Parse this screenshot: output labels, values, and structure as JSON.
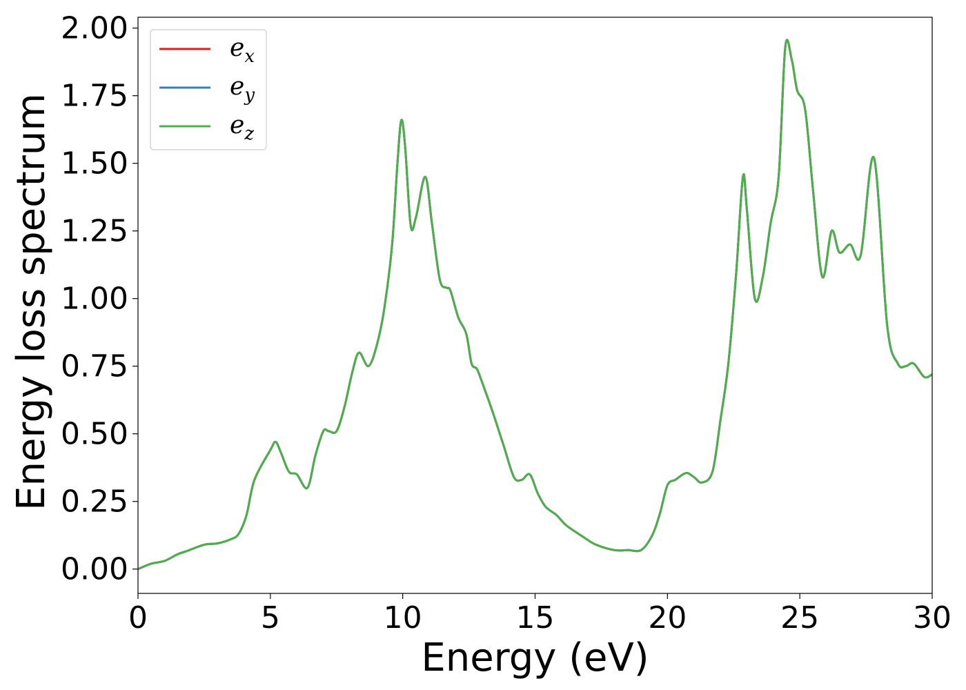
{
  "chart_data": {
    "type": "line",
    "title": "",
    "xlabel": "Energy (eV)",
    "ylabel": "Energy loss spectrum",
    "xlim": [
      0,
      30
    ],
    "ylim": [
      -0.09,
      2.04
    ],
    "xticks": [
      0,
      5,
      10,
      15,
      20,
      25,
      30
    ],
    "xtick_labels": [
      "0",
      "5",
      "10",
      "15",
      "20",
      "25",
      "30"
    ],
    "yticks": [
      0.0,
      0.25,
      0.5,
      0.75,
      1.0,
      1.25,
      1.5,
      1.75,
      2.0
    ],
    "ytick_labels": [
      "0.00",
      "0.25",
      "0.50",
      "0.75",
      "1.00",
      "1.25",
      "1.50",
      "1.75",
      "2.00"
    ],
    "grid": false,
    "legend_position": "top-left",
    "series": [
      {
        "name": "e",
        "subscript": "x",
        "color": "#e41a1c",
        "points": "shared"
      },
      {
        "name": "e",
        "subscript": "y",
        "color": "#377eb8",
        "points": "shared"
      },
      {
        "name": "e",
        "subscript": "z",
        "color": "#4daf4a",
        "points": "shared"
      }
    ],
    "x": [
      0,
      0.5,
      1.0,
      1.5,
      1.8,
      2.5,
      3.0,
      3.5,
      3.8,
      4.1,
      4.4,
      5.0,
      5.2,
      5.4,
      5.7,
      6.0,
      6.4,
      6.7,
      7.0,
      7.2,
      7.5,
      7.8,
      8.1,
      8.35,
      8.7,
      9.0,
      9.3,
      9.6,
      9.8,
      9.95,
      10.1,
      10.3,
      10.5,
      10.85,
      11.1,
      11.4,
      11.65,
      11.8,
      12.1,
      12.4,
      12.6,
      12.8,
      13.0,
      13.4,
      13.8,
      14.2,
      14.5,
      14.8,
      15.1,
      15.4,
      15.8,
      16.2,
      16.8,
      17.3,
      18.0,
      18.5,
      19.0,
      19.4,
      19.7,
      20.0,
      20.3,
      20.7,
      21.0,
      21.3,
      21.7,
      22.0,
      22.3,
      22.6,
      22.85,
      23.0,
      23.3,
      23.6,
      23.9,
      24.2,
      24.45,
      24.7,
      24.9,
      25.2,
      25.5,
      25.85,
      26.2,
      26.5,
      26.9,
      27.3,
      27.8,
      28.3,
      28.7,
      29.0,
      29.3,
      29.7,
      30.0
    ],
    "y": [
      0.0,
      0.02,
      0.03,
      0.055,
      0.065,
      0.09,
      0.095,
      0.11,
      0.13,
      0.2,
      0.33,
      0.44,
      0.47,
      0.43,
      0.36,
      0.35,
      0.3,
      0.42,
      0.51,
      0.51,
      0.51,
      0.6,
      0.73,
      0.8,
      0.75,
      0.82,
      0.96,
      1.2,
      1.5,
      1.66,
      1.55,
      1.27,
      1.3,
      1.45,
      1.28,
      1.07,
      1.04,
      1.03,
      0.93,
      0.87,
      0.76,
      0.74,
      0.69,
      0.58,
      0.46,
      0.34,
      0.33,
      0.35,
      0.28,
      0.23,
      0.2,
      0.16,
      0.12,
      0.09,
      0.07,
      0.07,
      0.07,
      0.12,
      0.2,
      0.31,
      0.33,
      0.355,
      0.34,
      0.32,
      0.36,
      0.55,
      0.76,
      1.1,
      1.45,
      1.33,
      1.0,
      1.08,
      1.28,
      1.45,
      1.93,
      1.88,
      1.77,
      1.7,
      1.4,
      1.08,
      1.25,
      1.17,
      1.2,
      1.16,
      1.52,
      0.9,
      0.76,
      0.75,
      0.76,
      0.71,
      0.72
    ],
    "legend": [
      {
        "label": "e",
        "sub": "x"
      },
      {
        "label": "e",
        "sub": "y"
      },
      {
        "label": "e",
        "sub": "z"
      }
    ]
  }
}
